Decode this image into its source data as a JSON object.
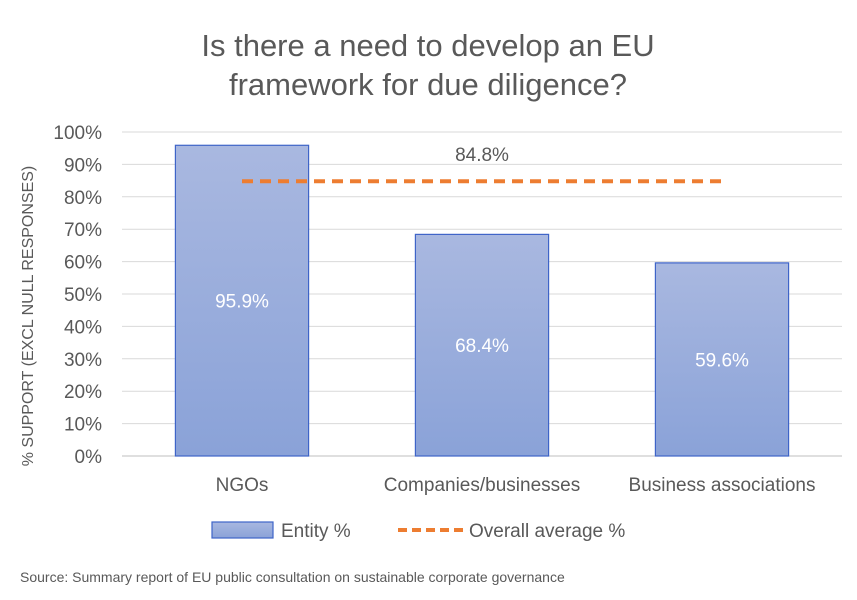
{
  "chart_data": {
    "type": "bar",
    "title_lines": [
      "Is there a need to develop an EU",
      "framework for due diligence?"
    ],
    "ylabel": "% SUPPORT (EXCL NULL RESPONSES)",
    "xlabel": "",
    "categories": [
      "NGOs",
      "Companies/businesses",
      "Business associations"
    ],
    "series": [
      {
        "name": "Entity %",
        "values": [
          95.9,
          68.4,
          59.6
        ],
        "labels": [
          "95.9%",
          "68.4%",
          "59.6%"
        ],
        "color_top": "#a9b8e0",
        "color_bottom": "#8aa2d8",
        "border": "#3e64c8"
      }
    ],
    "average": {
      "name": "Overall average %",
      "value": 84.8,
      "label": "84.8%",
      "color": "#ed7d31"
    },
    "ylim": [
      0,
      100
    ],
    "yticks": [
      "0%",
      "10%",
      "20%",
      "30%",
      "40%",
      "50%",
      "60%",
      "70%",
      "80%",
      "90%",
      "100%"
    ],
    "grid": true,
    "legend_position": "bottom"
  },
  "source": "Source: Summary report of EU public consultation on sustainable corporate governance"
}
